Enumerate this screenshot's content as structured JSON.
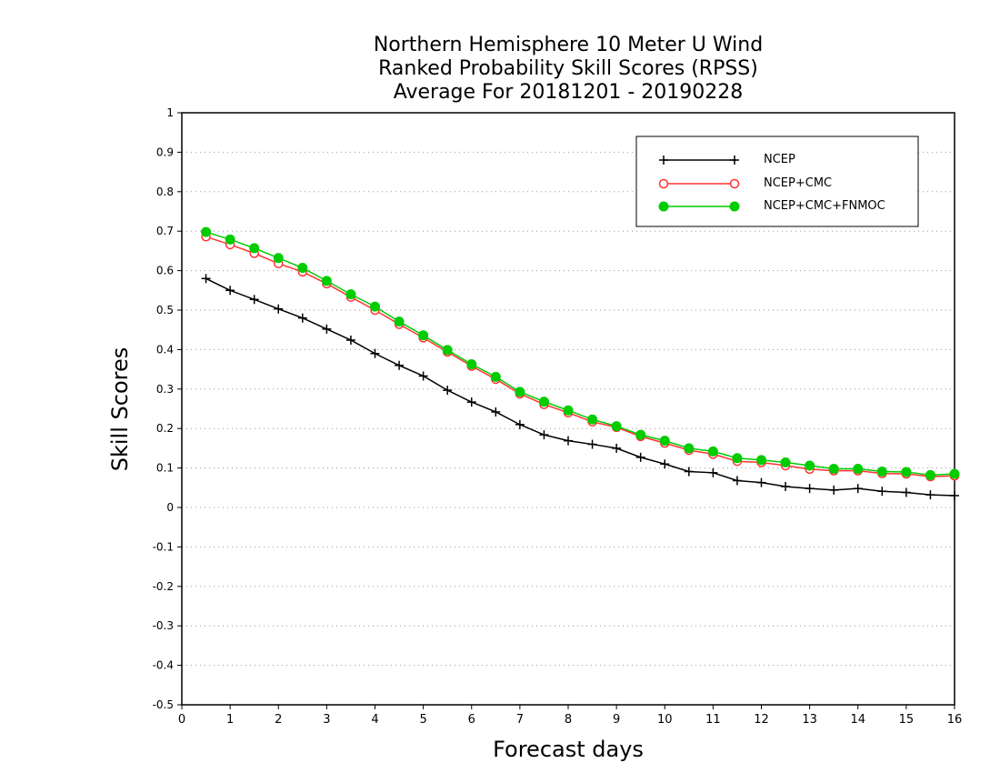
{
  "chart_data": {
    "type": "line",
    "title_lines": [
      "Northern Hemisphere 10 Meter U Wind",
      "Ranked Probability Skill Scores (RPSS)",
      "Average For 20181201 - 20190228"
    ],
    "xlabel": "Forecast days",
    "ylabel": "Skill Scores",
    "xlim": [
      0,
      16
    ],
    "ylim": [
      -0.5,
      1
    ],
    "x_ticks": [
      0,
      1,
      2,
      3,
      4,
      5,
      6,
      7,
      8,
      9,
      10,
      11,
      12,
      13,
      14,
      15,
      16
    ],
    "y_ticks": [
      -0.5,
      -0.4,
      -0.3,
      -0.2,
      -0.1,
      0,
      0.1,
      0.2,
      0.3,
      0.4,
      0.5,
      0.6,
      0.7,
      0.8,
      0.9,
      1
    ],
    "y_tick_labels": [
      "-0.5",
      "-0.4",
      "-0.3",
      "-0.2",
      "-0.1",
      "0",
      "0.1",
      "0.2",
      "0.3",
      "0.4",
      "0.5",
      "0.6",
      "0.7",
      "0.8",
      "0.9",
      "1"
    ],
    "grid": "horizontal dotted",
    "legend_position": "top-right",
    "x": [
      0.5,
      1,
      1.5,
      2,
      2.5,
      3,
      3.5,
      4,
      4.5,
      5,
      5.5,
      6,
      6.5,
      7,
      7.5,
      8,
      8.5,
      9,
      9.5,
      10,
      10.5,
      11,
      11.5,
      12,
      12.5,
      13,
      13.5,
      14,
      14.5,
      15,
      15.5,
      16
    ],
    "series": [
      {
        "name": "NCEP",
        "color": "#000000",
        "marker": "plus",
        "values": [
          0.58,
          0.55,
          0.527,
          0.503,
          0.48,
          0.452,
          0.424,
          0.39,
          0.36,
          0.333,
          0.297,
          0.267,
          0.242,
          0.21,
          0.184,
          0.169,
          0.16,
          0.15,
          0.127,
          0.11,
          0.091,
          0.088,
          0.068,
          0.063,
          0.053,
          0.048,
          0.044,
          0.048,
          0.041,
          0.038,
          0.032,
          0.03
        ]
      },
      {
        "name": "NCEP+CMC",
        "color": "#ff3333",
        "marker": "open-circle",
        "values": [
          0.686,
          0.666,
          0.644,
          0.618,
          0.597,
          0.567,
          0.533,
          0.5,
          0.464,
          0.43,
          0.394,
          0.358,
          0.325,
          0.288,
          0.261,
          0.24,
          0.217,
          0.203,
          0.18,
          0.163,
          0.145,
          0.135,
          0.117,
          0.114,
          0.106,
          0.097,
          0.093,
          0.093,
          0.086,
          0.085,
          0.078,
          0.08
        ]
      },
      {
        "name": "NCEP+CMC+FNMOC",
        "color": "#00cc00",
        "marker": "filled-circle",
        "values": [
          0.698,
          0.679,
          0.657,
          0.632,
          0.607,
          0.574,
          0.54,
          0.509,
          0.471,
          0.436,
          0.399,
          0.363,
          0.331,
          0.293,
          0.268,
          0.246,
          0.223,
          0.206,
          0.184,
          0.169,
          0.15,
          0.142,
          0.125,
          0.12,
          0.114,
          0.106,
          0.098,
          0.098,
          0.091,
          0.09,
          0.082,
          0.085
        ]
      }
    ]
  }
}
